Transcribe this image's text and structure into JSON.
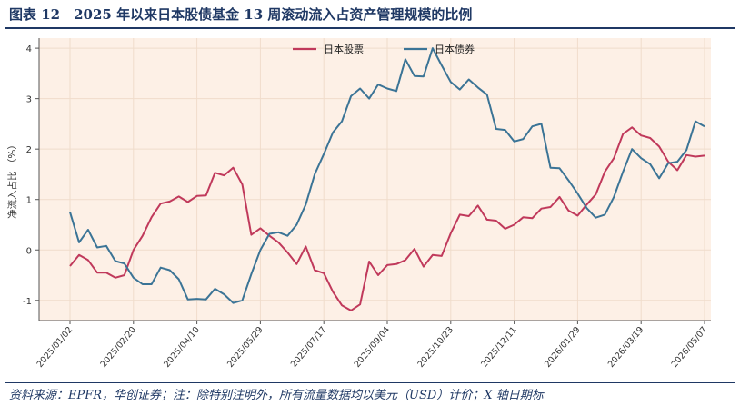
{
  "title": "图表 12　2025 年以来日本股债基金 13 周滚动流入占资产管理规模的比例",
  "source": "资料来源：EPFR，华创证券；注：除特别注明外，所有流量数据均以美元（USD）计价；X 轴日期标",
  "colors": {
    "title": "#1f3864",
    "plot_bg": "#fdf0e6",
    "grid": "#f0dccb",
    "axis": "#555555"
  },
  "chart_data": {
    "type": "line",
    "ylabel": "净流入占比 （%）",
    "ylim": [
      -1.4,
      4.2
    ],
    "yticks": [
      -1,
      0,
      1,
      2,
      3,
      4
    ],
    "xticks": [
      "2025/01/02",
      "2025/02/20",
      "2025/04/10",
      "2025/05/29",
      "2025/07/17",
      "2025/09/04",
      "2025/10/23",
      "2025/12/11",
      "2026/01/29",
      "2026/03/19",
      "2026/05/07"
    ],
    "legend_position": "top-center",
    "grid": true,
    "series": [
      {
        "name": "日本股票",
        "color": "#c0395b",
        "values": [
          -0.32,
          -0.1,
          -0.2,
          -0.45,
          -0.45,
          -0.55,
          -0.5,
          0.0,
          0.28,
          0.65,
          0.92,
          0.96,
          1.06,
          0.95,
          1.07,
          1.08,
          1.53,
          1.48,
          1.63,
          1.3,
          0.3,
          0.43,
          0.28,
          0.15,
          -0.05,
          -0.28,
          0.07,
          -0.4,
          -0.46,
          -0.83,
          -1.1,
          -1.2,
          -1.08,
          -0.23,
          -0.5,
          -0.3,
          -0.28,
          -0.2,
          0.02,
          -0.33,
          -0.1,
          -0.12,
          0.33,
          0.7,
          0.67,
          0.88,
          0.6,
          0.58,
          0.42,
          0.5,
          0.65,
          0.63,
          0.82,
          0.85,
          1.05,
          0.78,
          0.68,
          0.9,
          1.1,
          1.55,
          1.82,
          2.3,
          2.43,
          2.27,
          2.22,
          2.05,
          1.75,
          1.58,
          1.88,
          1.85,
          1.87
        ]
      },
      {
        "name": "日本债券",
        "color": "#3b7496",
        "values": [
          0.75,
          0.15,
          0.4,
          0.05,
          0.08,
          -0.22,
          -0.27,
          -0.55,
          -0.68,
          -0.68,
          -0.35,
          -0.4,
          -0.58,
          -0.98,
          -0.97,
          -0.98,
          -0.77,
          -0.88,
          -1.05,
          -1.0,
          -0.48,
          0.0,
          0.32,
          0.35,
          0.28,
          0.5,
          0.9,
          1.5,
          1.9,
          2.33,
          2.55,
          3.05,
          3.2,
          3.0,
          3.28,
          3.2,
          3.15,
          3.78,
          3.45,
          3.44,
          4.0,
          3.66,
          3.33,
          3.18,
          3.38,
          3.22,
          3.08,
          2.4,
          2.38,
          2.15,
          2.2,
          2.45,
          2.5,
          1.63,
          1.62,
          1.38,
          1.12,
          0.83,
          0.64,
          0.7,
          1.05,
          1.55,
          2.0,
          1.82,
          1.7,
          1.42,
          1.72,
          1.75,
          1.98,
          2.55,
          2.45
        ]
      }
    ]
  }
}
